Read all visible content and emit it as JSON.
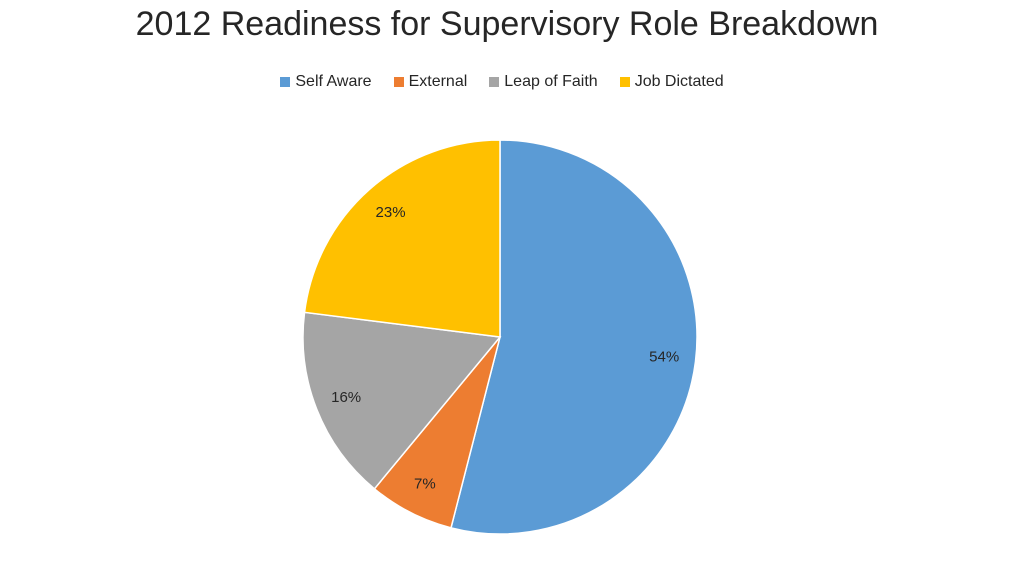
{
  "chart_data": {
    "type": "pie",
    "title": "2012 Readiness for Supervisory Role Breakdown",
    "categories": [
      "Self Aware",
      "External",
      "Leap of Faith",
      "Job Dictated"
    ],
    "values": [
      54,
      7,
      16,
      23
    ],
    "labels": [
      "54%",
      "7%",
      "16%",
      "23%"
    ],
    "colors": [
      "#5B9BD5",
      "#ED7D31",
      "#A5A5A5",
      "#FFC000"
    ],
    "legend": "top",
    "start_angle": "12 o'clock",
    "direction": "clockwise"
  }
}
